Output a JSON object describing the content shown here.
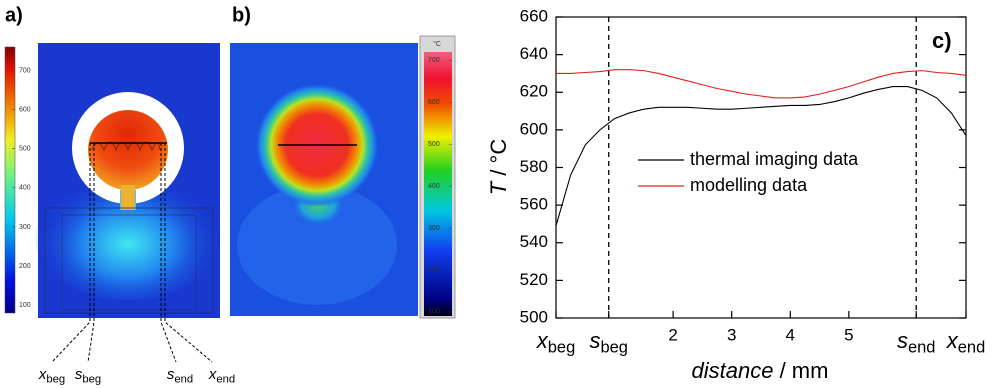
{
  "chart_data": [
    {
      "type": "heatmap",
      "panel_label": "a)",
      "clim": [
        80,
        760
      ],
      "cticks": [
        100,
        200,
        300,
        400,
        500,
        600,
        700
      ],
      "markers": [
        {
          "label": "x",
          "sub": "beg"
        },
        {
          "label": "s",
          "sub": "beg"
        },
        {
          "label": "s",
          "sub": "end"
        },
        {
          "label": "x",
          "sub": "end"
        }
      ]
    },
    {
      "type": "heatmap",
      "panel_label": "b)",
      "colorbar_unit": "°C",
      "clim": [
        90,
        720
      ],
      "cticks": [
        100,
        200,
        300,
        400,
        500,
        600,
        700
      ]
    },
    {
      "type": "line",
      "panel_label": "c)",
      "x_label": {
        "italic": "distance",
        "rest": " / mm"
      },
      "y_label": {
        "italic": "T",
        "rest": " / °C"
      },
      "xlim": [
        0,
        7
      ],
      "ylim": [
        500,
        660
      ],
      "xticks": [
        {
          "value": 0,
          "label": "x",
          "sub": "beg"
        },
        {
          "value": 0.9,
          "label": "s",
          "sub": "beg",
          "dashed": true
        },
        2,
        3,
        4,
        5,
        {
          "value": 6.15,
          "label": "s",
          "sub": "end",
          "dashed": true
        },
        {
          "value": 7,
          "label": "x",
          "sub": "end"
        }
      ],
      "yticks": [
        500,
        520,
        540,
        560,
        580,
        600,
        620,
        640,
        660
      ],
      "x": [
        0,
        0.25,
        0.5,
        0.75,
        1,
        1.25,
        1.5,
        1.75,
        2,
        2.25,
        2.5,
        2.75,
        3,
        3.25,
        3.5,
        3.75,
        4,
        4.25,
        4.5,
        4.75,
        5,
        5.25,
        5.5,
        5.75,
        6,
        6.25,
        6.5,
        6.75,
        7
      ],
      "series": [
        {
          "name": "thermal imaging data",
          "color": "#000000",
          "values": [
            549,
            576,
            592,
            600,
            606,
            609,
            611,
            612,
            612,
            612,
            611.5,
            611,
            611,
            611.5,
            612,
            612.5,
            613,
            613,
            613.5,
            615,
            617,
            619.5,
            621.5,
            623,
            623,
            621,
            617,
            609,
            597
          ]
        },
        {
          "name": "modelling data",
          "color": "#e02020",
          "values": [
            630,
            630,
            630.5,
            631,
            632,
            632,
            631.5,
            630,
            628,
            626,
            624,
            622,
            620.5,
            619,
            618,
            617,
            617,
            617.5,
            619,
            621,
            623,
            625.5,
            628,
            630,
            631,
            631.5,
            630.5,
            630,
            629
          ]
        }
      ]
    }
  ]
}
